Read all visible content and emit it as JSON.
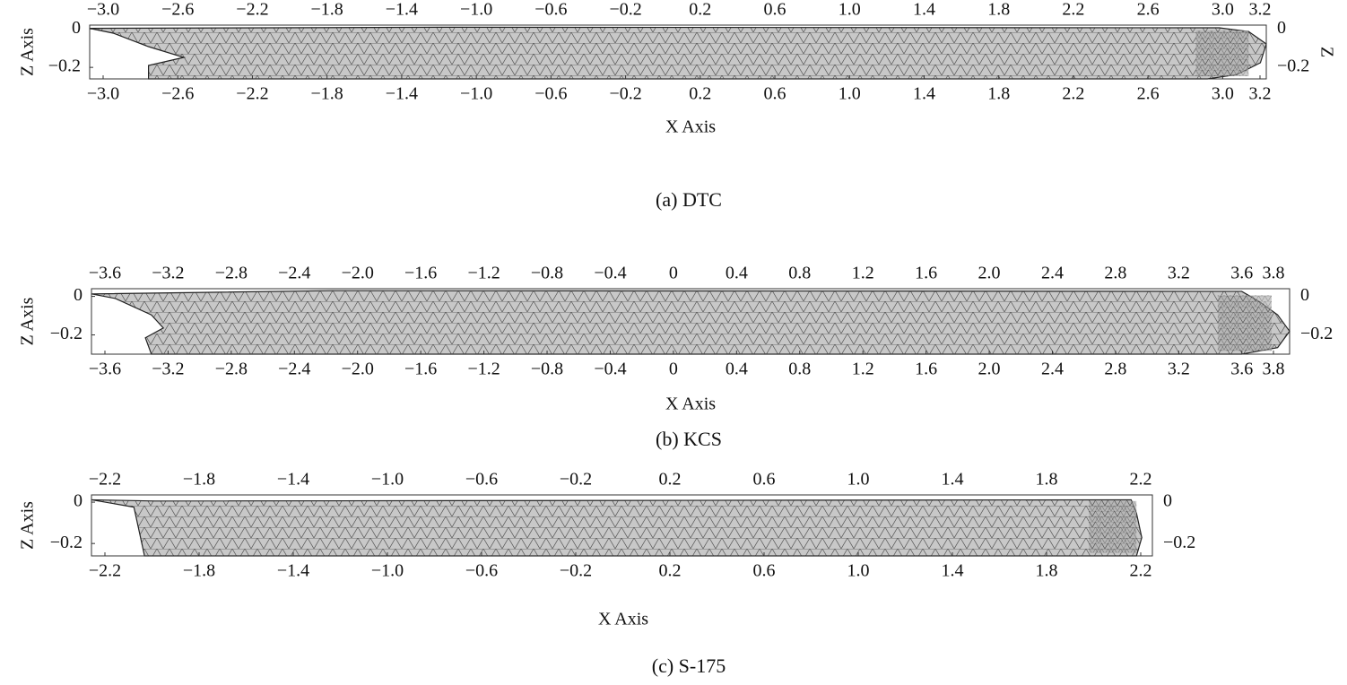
{
  "chart_data": [
    {
      "type": "hull",
      "caption": "(a) DTC",
      "xlabel": "X Axis",
      "ylabel": "Z Axis",
      "y2label": "Z",
      "xlim": [
        -3.0,
        3.2
      ],
      "ylim": [
        -0.26,
        0.02
      ],
      "xticks": [
        {
          "value": -3.0,
          "label": "−3.0"
        },
        {
          "value": -2.6,
          "label": "−2.6"
        },
        {
          "value": -2.2,
          "label": "−2.2"
        },
        {
          "value": -1.8,
          "label": "−1.8"
        },
        {
          "value": -1.4,
          "label": "−1.4"
        },
        {
          "value": -1.0,
          "label": "−1.0"
        },
        {
          "value": -0.6,
          "label": "−0.6"
        },
        {
          "value": -0.2,
          "label": "−0.2"
        },
        0.2,
        0.6,
        {
          "value": 1.0,
          "label": "1.0"
        },
        1.4,
        1.8,
        2.2,
        2.6,
        {
          "value": 3.0,
          "label": "3.0"
        },
        3.2
      ],
      "yticks": [
        {
          "value": -0.2,
          "label": "−0.2"
        },
        0
      ]
    },
    {
      "type": "hull",
      "caption": "(b) KCS",
      "xlabel": "X Axis",
      "ylabel": "Z Axis",
      "xlim": [
        -3.6,
        3.8
      ],
      "ylim": [
        -0.3,
        0.04
      ],
      "xticks": [
        {
          "value": -3.6,
          "label": "−3.6"
        },
        {
          "value": -3.2,
          "label": "−3.2"
        },
        {
          "value": -2.8,
          "label": "−2.8"
        },
        {
          "value": -2.4,
          "label": "−2.4"
        },
        {
          "value": -2.0,
          "label": "−2.0"
        },
        {
          "value": -1.6,
          "label": "−1.6"
        },
        {
          "value": -1.2,
          "label": "−1.2"
        },
        {
          "value": -0.8,
          "label": "−0.8"
        },
        {
          "value": -0.4,
          "label": "−0.4"
        },
        0,
        0.4,
        0.8,
        1.2,
        1.6,
        {
          "value": 2.0,
          "label": "2.0"
        },
        2.4,
        2.8,
        3.2,
        3.6,
        3.8
      ],
      "yticks": [
        {
          "value": -0.2,
          "label": "−0.2"
        },
        0
      ]
    },
    {
      "type": "hull",
      "caption": "(c) S-175",
      "xlabel": "X Axis",
      "ylabel": "Z Axis",
      "xlim": [
        -2.2,
        2.2
      ],
      "ylim": [
        -0.26,
        0.035
      ],
      "xticks": [
        {
          "value": -2.2,
          "label": "−2.2"
        },
        {
          "value": -1.8,
          "label": "−1.8"
        },
        {
          "value": -1.4,
          "label": "−1.4"
        },
        {
          "value": -1.0,
          "label": "−1.0"
        },
        {
          "value": -0.6,
          "label": "−0.6"
        },
        {
          "value": -0.2,
          "label": "−0.2"
        },
        0.2,
        0.6,
        {
          "value": 1.0,
          "label": "1.0"
        },
        1.4,
        1.8,
        2.2
      ],
      "yticks": [
        {
          "value": -0.2,
          "label": "−0.2"
        },
        0
      ]
    }
  ]
}
